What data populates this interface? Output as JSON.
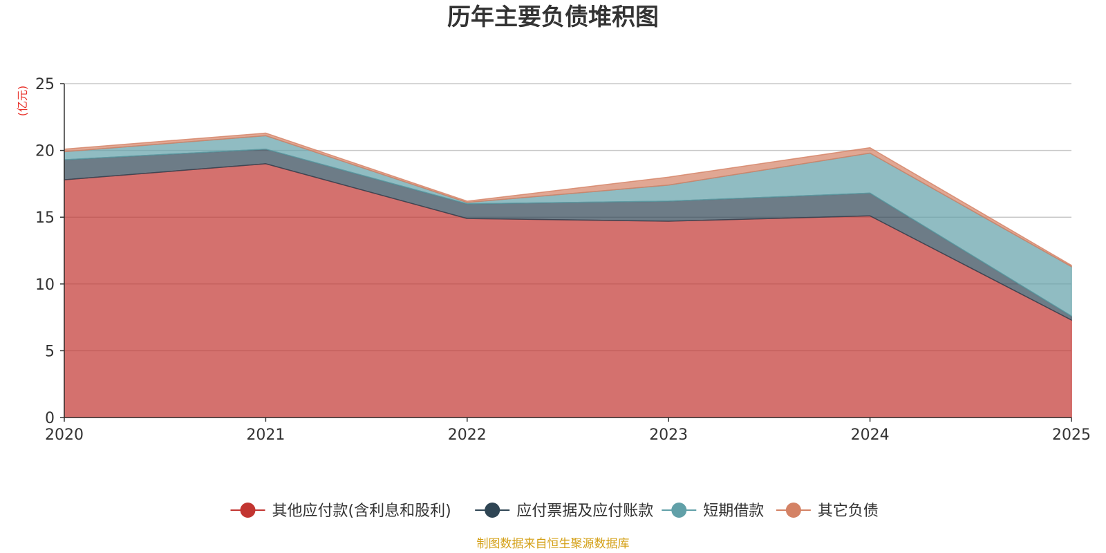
{
  "chart_data": {
    "type": "area",
    "stacked": true,
    "title": "历年主要负债堆积图",
    "ylabel": "(亿元)",
    "xlabel": "",
    "categories": [
      "2020",
      "2021",
      "2022",
      "2023",
      "2024",
      "2025"
    ],
    "ylim": [
      0,
      25
    ],
    "yticks": [
      "0",
      "5",
      "10",
      "15",
      "20",
      "25"
    ],
    "grid": true,
    "legend_position": "bottom-center",
    "series": [
      {
        "name": "其他应付款(含利息和股利)",
        "color": "#c23531",
        "values": [
          17.8,
          19.0,
          14.9,
          14.7,
          15.1,
          7.3
        ]
      },
      {
        "name": "应付票据及应付账款",
        "color": "#2f4554",
        "values": [
          1.5,
          1.1,
          1.1,
          1.5,
          1.7,
          0.3
        ]
      },
      {
        "name": "短期借款",
        "color": "#61a0a8",
        "values": [
          0.6,
          1.0,
          0.1,
          1.2,
          3.0,
          3.7
        ]
      },
      {
        "name": "其它负债",
        "color": "#d48265",
        "values": [
          0.2,
          0.2,
          0.1,
          0.6,
          0.4,
          0.1
        ]
      }
    ],
    "source": "制图数据来自恒生聚源数据库",
    "colors": {
      "unit": "#e8312a",
      "source": "#d4a017",
      "grid": "#c8c8c8",
      "axis": "#333333"
    }
  }
}
